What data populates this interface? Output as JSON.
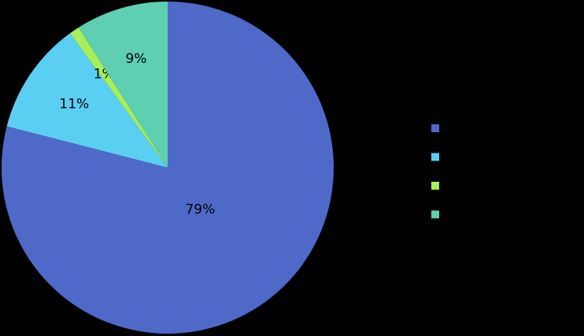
{
  "chart_data": {
    "type": "pie",
    "values": [
      79,
      11,
      1,
      9
    ],
    "value_labels": [
      "79%",
      "11%",
      "1%",
      "9%"
    ],
    "colors": [
      "#4f69c9",
      "#5bcff2",
      "#a6ef5a",
      "#5ecfb0"
    ],
    "legend": "right"
  }
}
